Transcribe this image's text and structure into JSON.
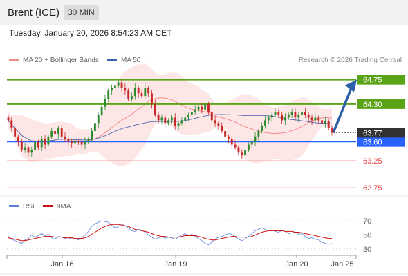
{
  "header": {
    "instrument": "Brent (ICE)",
    "timeframe": "30 MIN"
  },
  "timestamp": "Tuesday, January 20, 2026 8:54:23 AM CET",
  "credit": "Research © 2026 Trading Central",
  "colors": {
    "accent_green": "#5aa316",
    "support_blue": "#2962ff",
    "resistance_red": "#e83a3a",
    "ma20": "#f48c8c",
    "ma50": "#3a5ea8",
    "bollinger_fill": "#fde3e3",
    "arrow": "#2f5ea8",
    "rsi": "#5b7fd6",
    "rsi_ma": "#cc1111",
    "candle_up": "#2e8a2e",
    "candle_down": "#c62828"
  },
  "chart_data": [
    {
      "type": "candlestick",
      "legend": [
        {
          "name": "MA 20 + Bollinger Bands",
          "color": "#f48c8c"
        },
        {
          "name": "MA 50",
          "color": "#3a5ea8"
        }
      ],
      "x_ticks": [
        "Jan 16",
        "Jan 19",
        "Jan 20",
        "Jan 25"
      ],
      "ylim": [
        62.65,
        64.95
      ],
      "last_price": 63.77,
      "levels": [
        {
          "value": 64.75,
          "label": "64.75",
          "style": "green"
        },
        {
          "value": 64.3,
          "label": "64.30",
          "style": "green"
        },
        {
          "value": 63.6,
          "label": "63.60",
          "style": "blue"
        },
        {
          "value": 63.25,
          "label": "63.25",
          "style": "red"
        },
        {
          "value": 62.75,
          "label": "62.75",
          "style": "red"
        }
      ],
      "series": [
        {
          "name": "Close",
          "values": [
            64.0,
            63.85,
            63.7,
            63.6,
            63.45,
            63.5,
            63.4,
            63.45,
            63.6,
            63.5,
            63.65,
            63.55,
            63.7,
            63.8,
            63.75,
            63.85,
            63.7,
            63.65,
            63.6,
            63.58,
            63.62,
            63.6,
            63.55,
            63.6,
            63.65,
            63.8,
            63.95,
            64.1,
            64.25,
            64.4,
            64.55,
            64.6,
            64.65,
            64.7,
            64.6,
            64.55,
            64.4,
            64.45,
            64.6,
            64.5,
            64.45,
            64.6,
            64.5,
            64.3,
            64.1,
            64.0,
            64.05,
            63.95,
            64.0,
            64.05,
            63.9,
            63.95,
            64.0,
            64.05,
            64.1,
            64.15,
            64.2,
            64.25,
            64.2,
            64.3,
            64.15,
            64.0,
            63.95,
            63.9,
            63.8,
            63.7,
            63.65,
            63.55,
            63.5,
            63.4,
            63.35,
            63.45,
            63.55,
            63.6,
            63.7,
            63.8,
            63.9,
            64.0,
            64.05,
            64.1,
            64.15,
            64.1,
            64.0,
            64.05,
            64.1,
            64.15,
            64.05,
            64.1,
            64.15,
            64.1,
            64.05,
            64.0,
            64.05,
            64.0,
            63.95,
            63.98,
            63.85,
            63.77
          ]
        }
      ]
    },
    {
      "type": "line",
      "legend": [
        {
          "name": "RSI",
          "color": "#5b7fd6"
        },
        {
          "name": "9MA",
          "color": "#cc1111"
        }
      ],
      "y_ticks": [
        70,
        50,
        30
      ],
      "ylim": [
        25,
        78
      ],
      "series": [
        {
          "name": "RSI",
          "values": [
            48,
            44,
            42,
            40,
            38,
            43,
            45,
            50,
            47,
            49,
            52,
            49,
            51,
            46,
            44,
            48,
            47,
            45,
            44,
            46,
            45,
            43,
            46,
            50,
            55,
            62,
            66,
            68,
            70,
            69,
            68,
            64,
            60,
            62,
            66,
            63,
            60,
            56,
            55,
            58,
            57,
            54,
            50,
            47,
            44,
            46,
            48,
            45,
            47,
            46,
            44,
            47,
            50,
            52,
            49,
            51,
            48,
            45,
            42,
            38,
            36,
            40,
            44,
            47,
            48,
            50,
            52,
            51,
            47,
            44,
            42,
            45,
            48,
            52,
            56,
            58,
            60,
            58,
            56,
            57,
            55,
            54,
            56,
            55,
            52,
            53,
            54,
            51,
            52,
            48,
            45,
            46,
            44,
            43,
            40,
            38,
            37,
            38
          ]
        },
        {
          "name": "9MA",
          "values": [
            46,
            45,
            44,
            43,
            42,
            42,
            43,
            44,
            45,
            46,
            47,
            48,
            48,
            48,
            47,
            47,
            47,
            46,
            46,
            46,
            45,
            45,
            45,
            46,
            48,
            51,
            54,
            57,
            60,
            62,
            64,
            65,
            65,
            65,
            64,
            63,
            62,
            60,
            58,
            57,
            56,
            55,
            54,
            52,
            50,
            49,
            48,
            48,
            47,
            47,
            47,
            47,
            48,
            49,
            49,
            49,
            49,
            48,
            47,
            45,
            44,
            43,
            43,
            44,
            45,
            46,
            47,
            48,
            48,
            47,
            47,
            47,
            47,
            48,
            50,
            52,
            54,
            55,
            56,
            56,
            56,
            56,
            56,
            55,
            55,
            55,
            54,
            54,
            53,
            52,
            51,
            50,
            49,
            48,
            47,
            46,
            45,
            45
          ]
        }
      ]
    }
  ]
}
